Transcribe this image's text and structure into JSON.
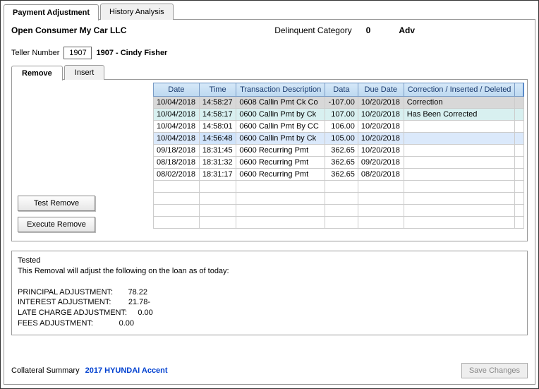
{
  "tabs": {
    "payment": "Payment Adjustment",
    "history": "History Analysis"
  },
  "header": {
    "title": "Open Consumer My Car LLC",
    "delinquent_label": "Delinquent Category",
    "delinquent_value": "0",
    "adv": "Adv"
  },
  "teller": {
    "label": "Teller Number",
    "number": "1907",
    "name": "1907 - Cindy Fisher"
  },
  "subtabs": {
    "remove": "Remove",
    "insert": "Insert"
  },
  "buttons": {
    "test": "Test Remove",
    "exec": "Execute Remove",
    "save": "Save Changes"
  },
  "grid": {
    "headers": {
      "date": "Date",
      "time": "Time",
      "desc": "Transaction Description",
      "data": "Data",
      "due": "Due Date",
      "status": "Correction / Inserted / Deleted"
    },
    "rows": [
      {
        "date": "10/04/2018",
        "time": "14:58:27",
        "desc": "0608 Callin Pmt Ck Co",
        "data": "-107.00",
        "due": "10/20/2018",
        "status": "Correction",
        "cls": "sel"
      },
      {
        "date": "10/04/2018",
        "time": "14:58:17",
        "desc": "0600 Callin Pmt by Ck",
        "data": "107.00",
        "due": "10/20/2018",
        "status": "Has Been Corrected",
        "cls": "corr"
      },
      {
        "date": "10/04/2018",
        "time": "14:58:01",
        "desc": "0600 Callin Pmt By CC",
        "data": "106.00",
        "due": "10/20/2018",
        "status": "",
        "cls": ""
      },
      {
        "date": "10/04/2018",
        "time": "14:56:48",
        "desc": "0600 Callin Pmt by Ck",
        "data": "105.00",
        "due": "10/20/2018",
        "status": "",
        "cls": "hl"
      },
      {
        "date": "09/18/2018",
        "time": "18:31:45",
        "desc": "0600 Recurring Pmt",
        "data": "362.65",
        "due": "10/20/2018",
        "status": "",
        "cls": ""
      },
      {
        "date": "08/18/2018",
        "time": "18:31:32",
        "desc": "0600 Recurring Pmt",
        "data": "362.65",
        "due": "09/20/2018",
        "status": "",
        "cls": ""
      },
      {
        "date": "08/02/2018",
        "time": "18:31:17",
        "desc": "0600 Recurring Pmt",
        "data": "362.65",
        "due": "08/20/2018",
        "status": "",
        "cls": ""
      }
    ],
    "blank_rows": 4
  },
  "message": "Tested\nThis Removal will adjust the following on the loan as of today:\n\nPRINCIPAL ADJUSTMENT:       78.22\nINTEREST ADJUSTMENT:        21.78-\nLATE CHARGE ADJUSTMENT:     0.00\nFEES ADJUSTMENT:            0.00",
  "footer": {
    "label": "Collateral Summary",
    "value": "2017 HYUNDAI Accent"
  }
}
